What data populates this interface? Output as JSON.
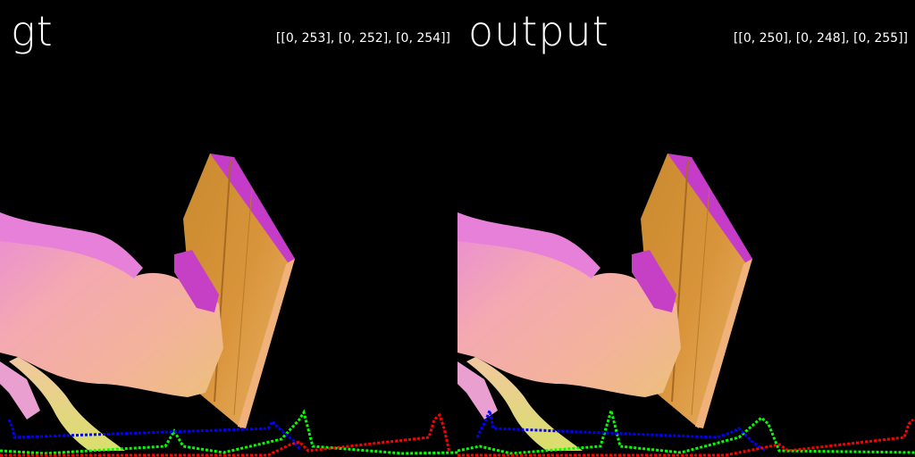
{
  "panels": [
    {
      "title": "gt",
      "range_text": "[[0, 253], [0, 252], [0, 254]]",
      "histogram": {
        "blue": [
          [
            10,
            470
          ],
          [
            14,
            480
          ],
          [
            16,
            490
          ],
          [
            300,
            480
          ],
          [
            305,
            472
          ],
          [
            310,
            478
          ],
          [
            330,
            495
          ],
          [
            336,
            505
          ]
        ],
        "green": [
          [
            0,
            505
          ],
          [
            50,
            508
          ],
          [
            185,
            500
          ],
          [
            195,
            483
          ],
          [
            205,
            500
          ],
          [
            250,
            507
          ],
          [
            315,
            492
          ],
          [
            335,
            470
          ],
          [
            340,
            462
          ],
          [
            350,
            500
          ],
          [
            450,
            508
          ],
          [
            512,
            507
          ]
        ],
        "red": [
          [
            0,
            510
          ],
          [
            300,
            510
          ],
          [
            325,
            498
          ],
          [
            335,
            495
          ],
          [
            345,
            505
          ],
          [
            480,
            490
          ],
          [
            486,
            470
          ],
          [
            492,
            465
          ],
          [
            497,
            480
          ],
          [
            503,
            507
          ]
        ]
      }
    },
    {
      "title": "output",
      "range_text": "[[0, 250], [0, 248], [0, 255]]",
      "histogram": {
        "blue": [
          [
            22,
            490
          ],
          [
            32,
            470
          ],
          [
            36,
            460
          ],
          [
            40,
            480
          ],
          [
            290,
            490
          ],
          [
            305,
            485
          ],
          [
            315,
            480
          ],
          [
            330,
            495
          ],
          [
            345,
            505
          ]
        ],
        "green": [
          [
            0,
            505
          ],
          [
            25,
            500
          ],
          [
            60,
            508
          ],
          [
            160,
            500
          ],
          [
            172,
            460
          ],
          [
            182,
            500
          ],
          [
            250,
            507
          ],
          [
            315,
            490
          ],
          [
            340,
            468
          ],
          [
            348,
            475
          ],
          [
            360,
            505
          ],
          [
            512,
            507
          ]
        ],
        "red": [
          [
            0,
            510
          ],
          [
            300,
            510
          ],
          [
            360,
            498
          ],
          [
            370,
            505
          ],
          [
            500,
            490
          ],
          [
            505,
            475
          ],
          [
            510,
            470
          ]
        ]
      }
    }
  ]
}
